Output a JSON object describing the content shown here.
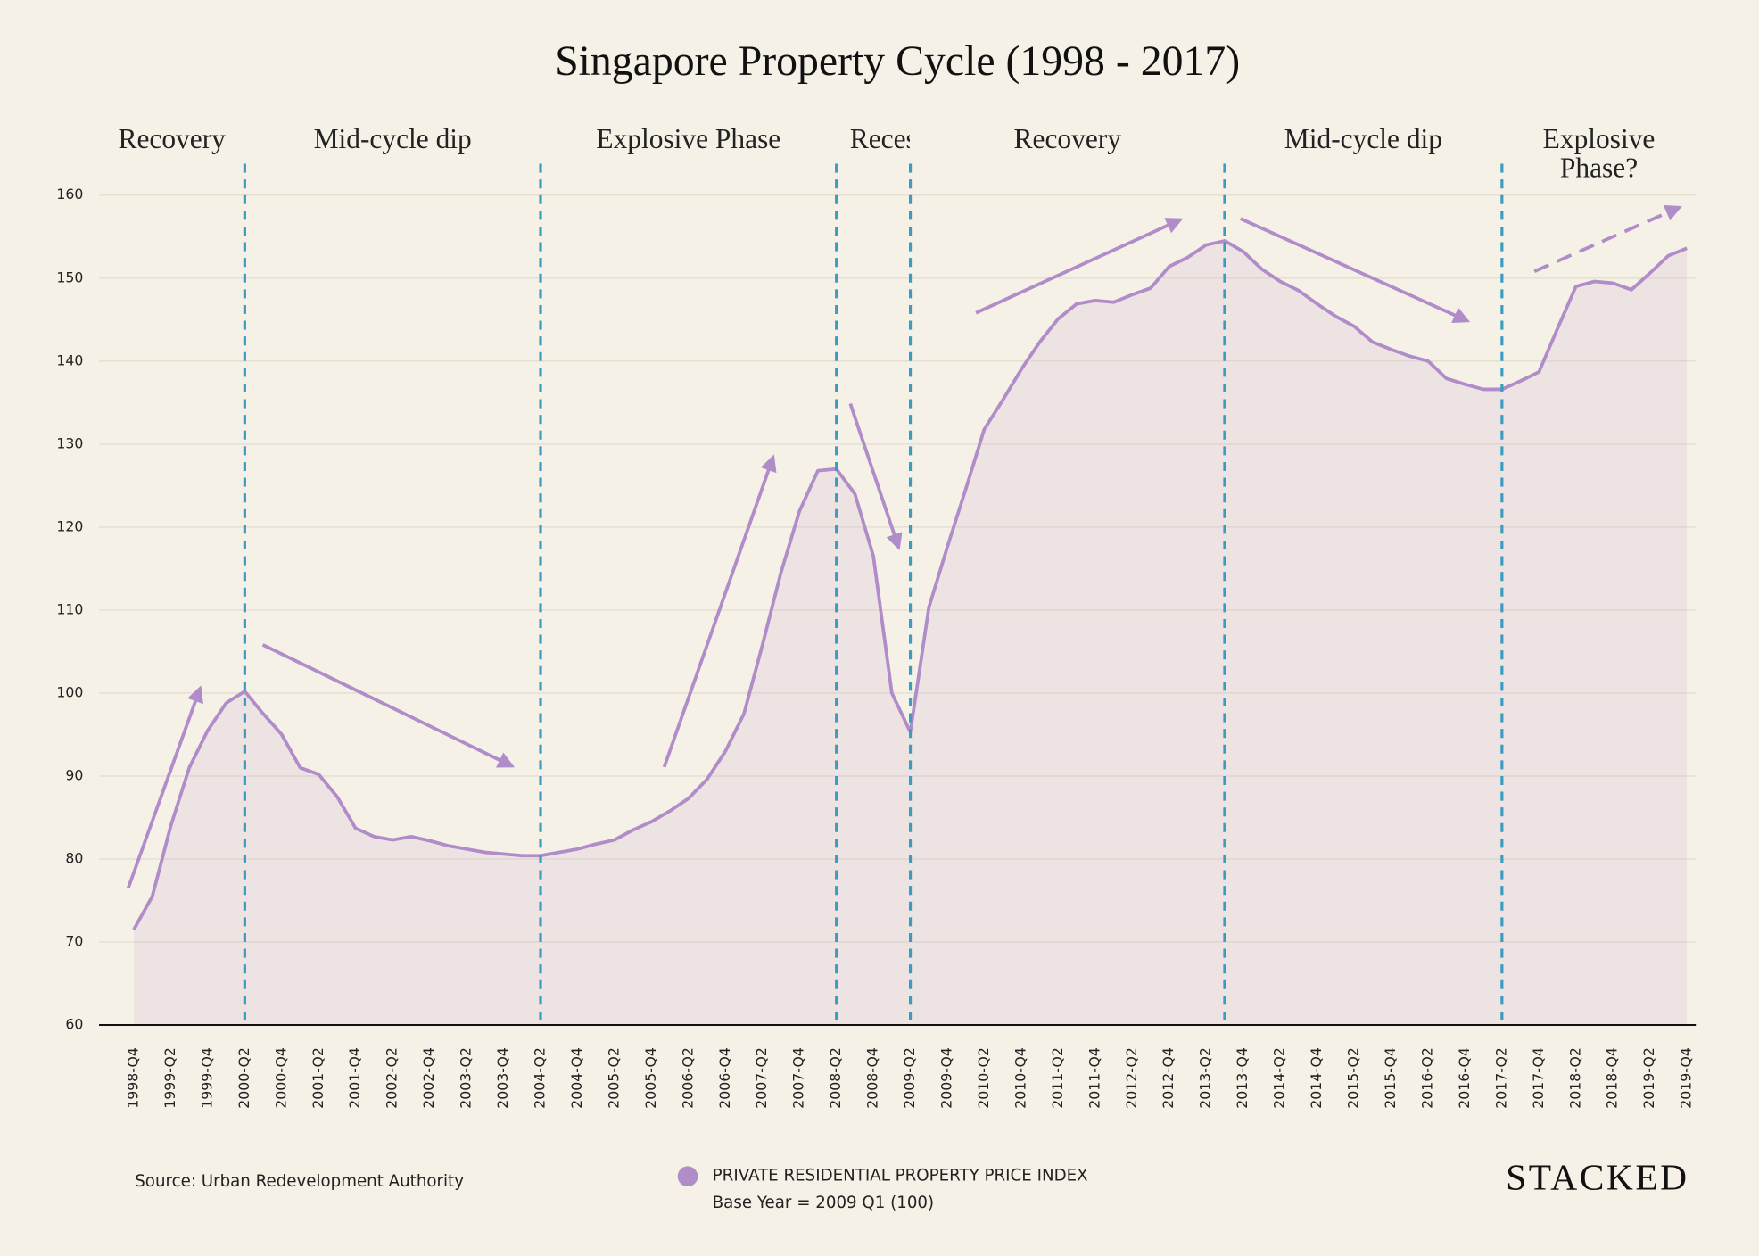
{
  "chart_data": {
    "type": "area",
    "title": "Singapore Property Cycle (1998 - 2017)",
    "categories": [
      "1998-Q4",
      null,
      "1999-Q2",
      null,
      "1999-Q4",
      null,
      "2000-Q2",
      null,
      "2000-Q4",
      null,
      "2001-Q2",
      null,
      "2001-Q4",
      null,
      "2002-Q2",
      null,
      "2002-Q4",
      null,
      "2003-Q2",
      null,
      "2003-Q4",
      null,
      "2004-Q2",
      null,
      "2004-Q4",
      null,
      "2005-Q2",
      null,
      "2005-Q4",
      null,
      "2006-Q2",
      null,
      "2006-Q4",
      null,
      "2007-Q2",
      null,
      "2007-Q4",
      null,
      "2008-Q2",
      null,
      "2008-Q4",
      null,
      "2009-Q2",
      null,
      "2009-Q4",
      null,
      "2010-Q2",
      null,
      "2010-Q4",
      null,
      "2011-Q2",
      null,
      "2011-Q4",
      null,
      "2012-Q2",
      null,
      "2012-Q4",
      null,
      "2013-Q2",
      null,
      "2013-Q4",
      null,
      "2014-Q2",
      null,
      "2014-Q4",
      null,
      "2015-Q2",
      null,
      "2015-Q4",
      null,
      "2016-Q2",
      null,
      "2016-Q4",
      null,
      "2017-Q2",
      null,
      "2017-Q4",
      null,
      "2018-Q2",
      null,
      "2018-Q4",
      null,
      "2019-Q2",
      null,
      "2019-Q4"
    ],
    "series": [
      {
        "name": "PRIVATE RESIDENTIAL PROPERTY PRICE INDEX",
        "color": "#b08cc8",
        "values": [
          71.5,
          75.5,
          84,
          91,
          95.5,
          98.8,
          100.2,
          97.5,
          95,
          91,
          90.2,
          87.5,
          83.7,
          82.7,
          82.3,
          82.7,
          82.2,
          81.6,
          81.2,
          80.8,
          80.6,
          80.4,
          80.4,
          80.8,
          81.2,
          81.8,
          82.3,
          83.5,
          84.5,
          85.8,
          87.3,
          89.6,
          93,
          97.5,
          105.8,
          114.5,
          121.9,
          126.8,
          127.0,
          124,
          116.5,
          100,
          95.3,
          110.3,
          117.6,
          124.6,
          131.8,
          135.3,
          139,
          142.3,
          145.1,
          146.9,
          147.3,
          147.1,
          148,
          148.8,
          151.4,
          152.5,
          154,
          154.5,
          153.2,
          151.1,
          149.6,
          148.5,
          146.9,
          145.4,
          144.2,
          142.3,
          141.4,
          140.6,
          140,
          137.9,
          137.2,
          136.6,
          136.6,
          137.6,
          138.7,
          143.9,
          149.0,
          149.6,
          149.4,
          148.6,
          150.6,
          152.7,
          153.6
        ]
      }
    ],
    "ylim": [
      60,
      160
    ],
    "yticks": [
      60,
      70,
      80,
      90,
      100,
      110,
      120,
      130,
      140,
      150,
      160
    ],
    "grid": true,
    "phase_boundaries": [
      6,
      22,
      38,
      42,
      59,
      74
    ],
    "phases": [
      "Recovery",
      "Mid-cycle dip",
      "Explosive Phase",
      "Recession",
      "Recovery",
      "Mid-cycle dip",
      "Explosive Phase?"
    ],
    "legend_note": "Base Year = 2009 Q1 (100)",
    "source": "Source: Urban Redevelopment Authority",
    "brand": "STACKED"
  }
}
